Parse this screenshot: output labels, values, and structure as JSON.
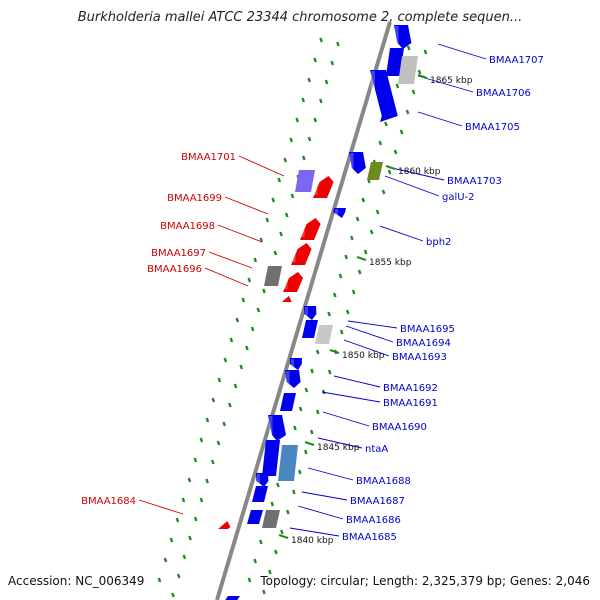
{
  "title": "Burkholderia mallei ATCC 23344 chromosome 2, complete sequen...",
  "footer": {
    "accession": "Accession: NC_006349",
    "topology": "Topology: circular; Length: 2,325,379 bp; Genes: 2,046"
  },
  "colors": {
    "forward_gene": "#0000ee",
    "reverse_gene": "#ee0000",
    "gray_gene": "#707070",
    "backbone": "#888888",
    "tick": "#228b22",
    "label_forward": "#0000cc",
    "label_reverse": "#cc0000"
  },
  "kbp_labels": [
    "1865 kbp",
    "1860 kbp",
    "1855 kbp",
    "1850 kbp",
    "1845 kbp",
    "1840 kbp"
  ],
  "right_labels": [
    "BMAA1707",
    "BMAA1706",
    "BMAA1705",
    "BMAA1703",
    "galU-2",
    "bph2",
    "BMAA1695",
    "BMAA1694",
    "BMAA1693",
    "BMAA1692",
    "BMAA1691",
    "BMAA1690",
    "ntaA",
    "BMAA1688",
    "BMAA1687",
    "BMAA1686",
    "BMAA1685"
  ],
  "left_labels": [
    "BMAA1701",
    "BMAA1699",
    "BMAA1698",
    "BMAA1697",
    "BMAA1696",
    "BMAA1684"
  ]
}
